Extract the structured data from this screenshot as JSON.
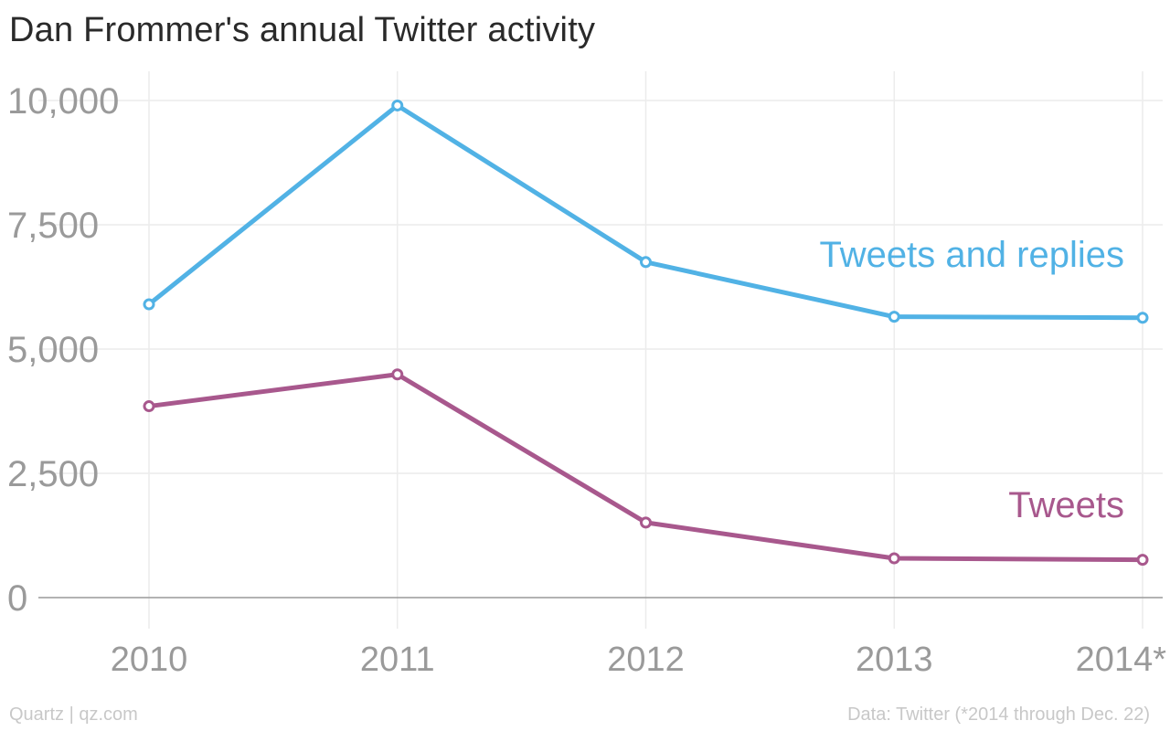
{
  "title": "Dan Frommer's annual Twitter activity",
  "credit": "Quartz | qz.com",
  "source": "Data: Twitter (*2014 through Dec. 22)",
  "chart_data": {
    "type": "line",
    "title": "Dan Frommer's annual Twitter activity",
    "x": [
      "2010",
      "2011",
      "2012",
      "2013",
      "2014*"
    ],
    "series": [
      {
        "name": "Tweets and replies",
        "color": "#51b2e5",
        "values": [
          5900,
          9900,
          6750,
          5650,
          5630
        ]
      },
      {
        "name": "Tweets",
        "color": "#a8588d",
        "values": [
          3850,
          4490,
          1510,
          790,
          760
        ]
      }
    ],
    "y_ticks": [
      "0",
      "2,500",
      "5,000",
      "7,500",
      "10,000"
    ],
    "y_tick_values": [
      0,
      2500,
      5000,
      7500,
      10000
    ],
    "ylim": [
      -200,
      10500
    ],
    "grid": true,
    "legend": "direct labels at right end of lines",
    "colors": {
      "grid": "#ececec",
      "baseline": "#9a9a9a",
      "tick_text": "#9a9a9a"
    }
  }
}
